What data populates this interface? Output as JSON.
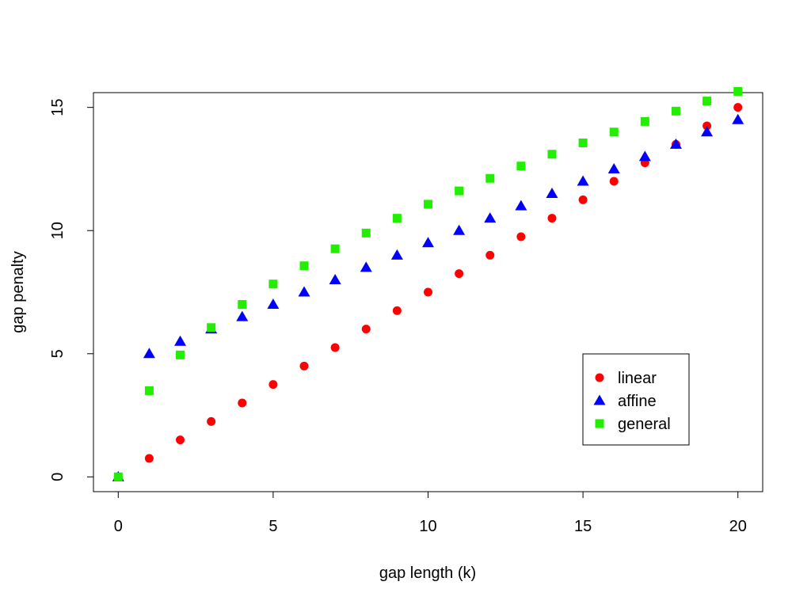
{
  "chart_data": {
    "type": "scatter",
    "title": "",
    "xlabel": "gap length (k)",
    "ylabel": "gap penalty",
    "xlim": [
      -0.8,
      20.8
    ],
    "ylim": [
      -0.6,
      15.6
    ],
    "xticks": [
      0,
      5,
      10,
      15,
      20
    ],
    "yticks": [
      0,
      5,
      10,
      15
    ],
    "grid": false,
    "legend_position": "bottom-right",
    "x": [
      0,
      1,
      2,
      3,
      4,
      5,
      6,
      7,
      8,
      9,
      10,
      11,
      12,
      13,
      14,
      15,
      16,
      17,
      18,
      19,
      20
    ],
    "series": [
      {
        "name": "linear",
        "color": "#ff0000",
        "marker": "circle",
        "values": [
          0,
          0.75,
          1.5,
          2.25,
          3,
          3.75,
          4.5,
          5.25,
          6,
          6.75,
          7.5,
          8.25,
          9,
          9.75,
          10.5,
          11.25,
          12,
          12.75,
          13.5,
          14.25,
          15
        ]
      },
      {
        "name": "affine",
        "color": "#0000ff",
        "marker": "triangle",
        "values": [
          0,
          5,
          5.5,
          6,
          6.5,
          7,
          7.5,
          8,
          8.5,
          9,
          9.5,
          10,
          10.5,
          11,
          11.5,
          12,
          12.5,
          13,
          13.5,
          14,
          14.5
        ]
      },
      {
        "name": "general",
        "color": "#22ee00",
        "marker": "square",
        "values": [
          0,
          3.5,
          4.95,
          6.06,
          7,
          7.83,
          8.57,
          9.26,
          9.9,
          10.5,
          11.07,
          11.61,
          12.12,
          12.62,
          13.1,
          13.56,
          14,
          14.43,
          14.85,
          15.26,
          15.65
        ]
      }
    ]
  }
}
